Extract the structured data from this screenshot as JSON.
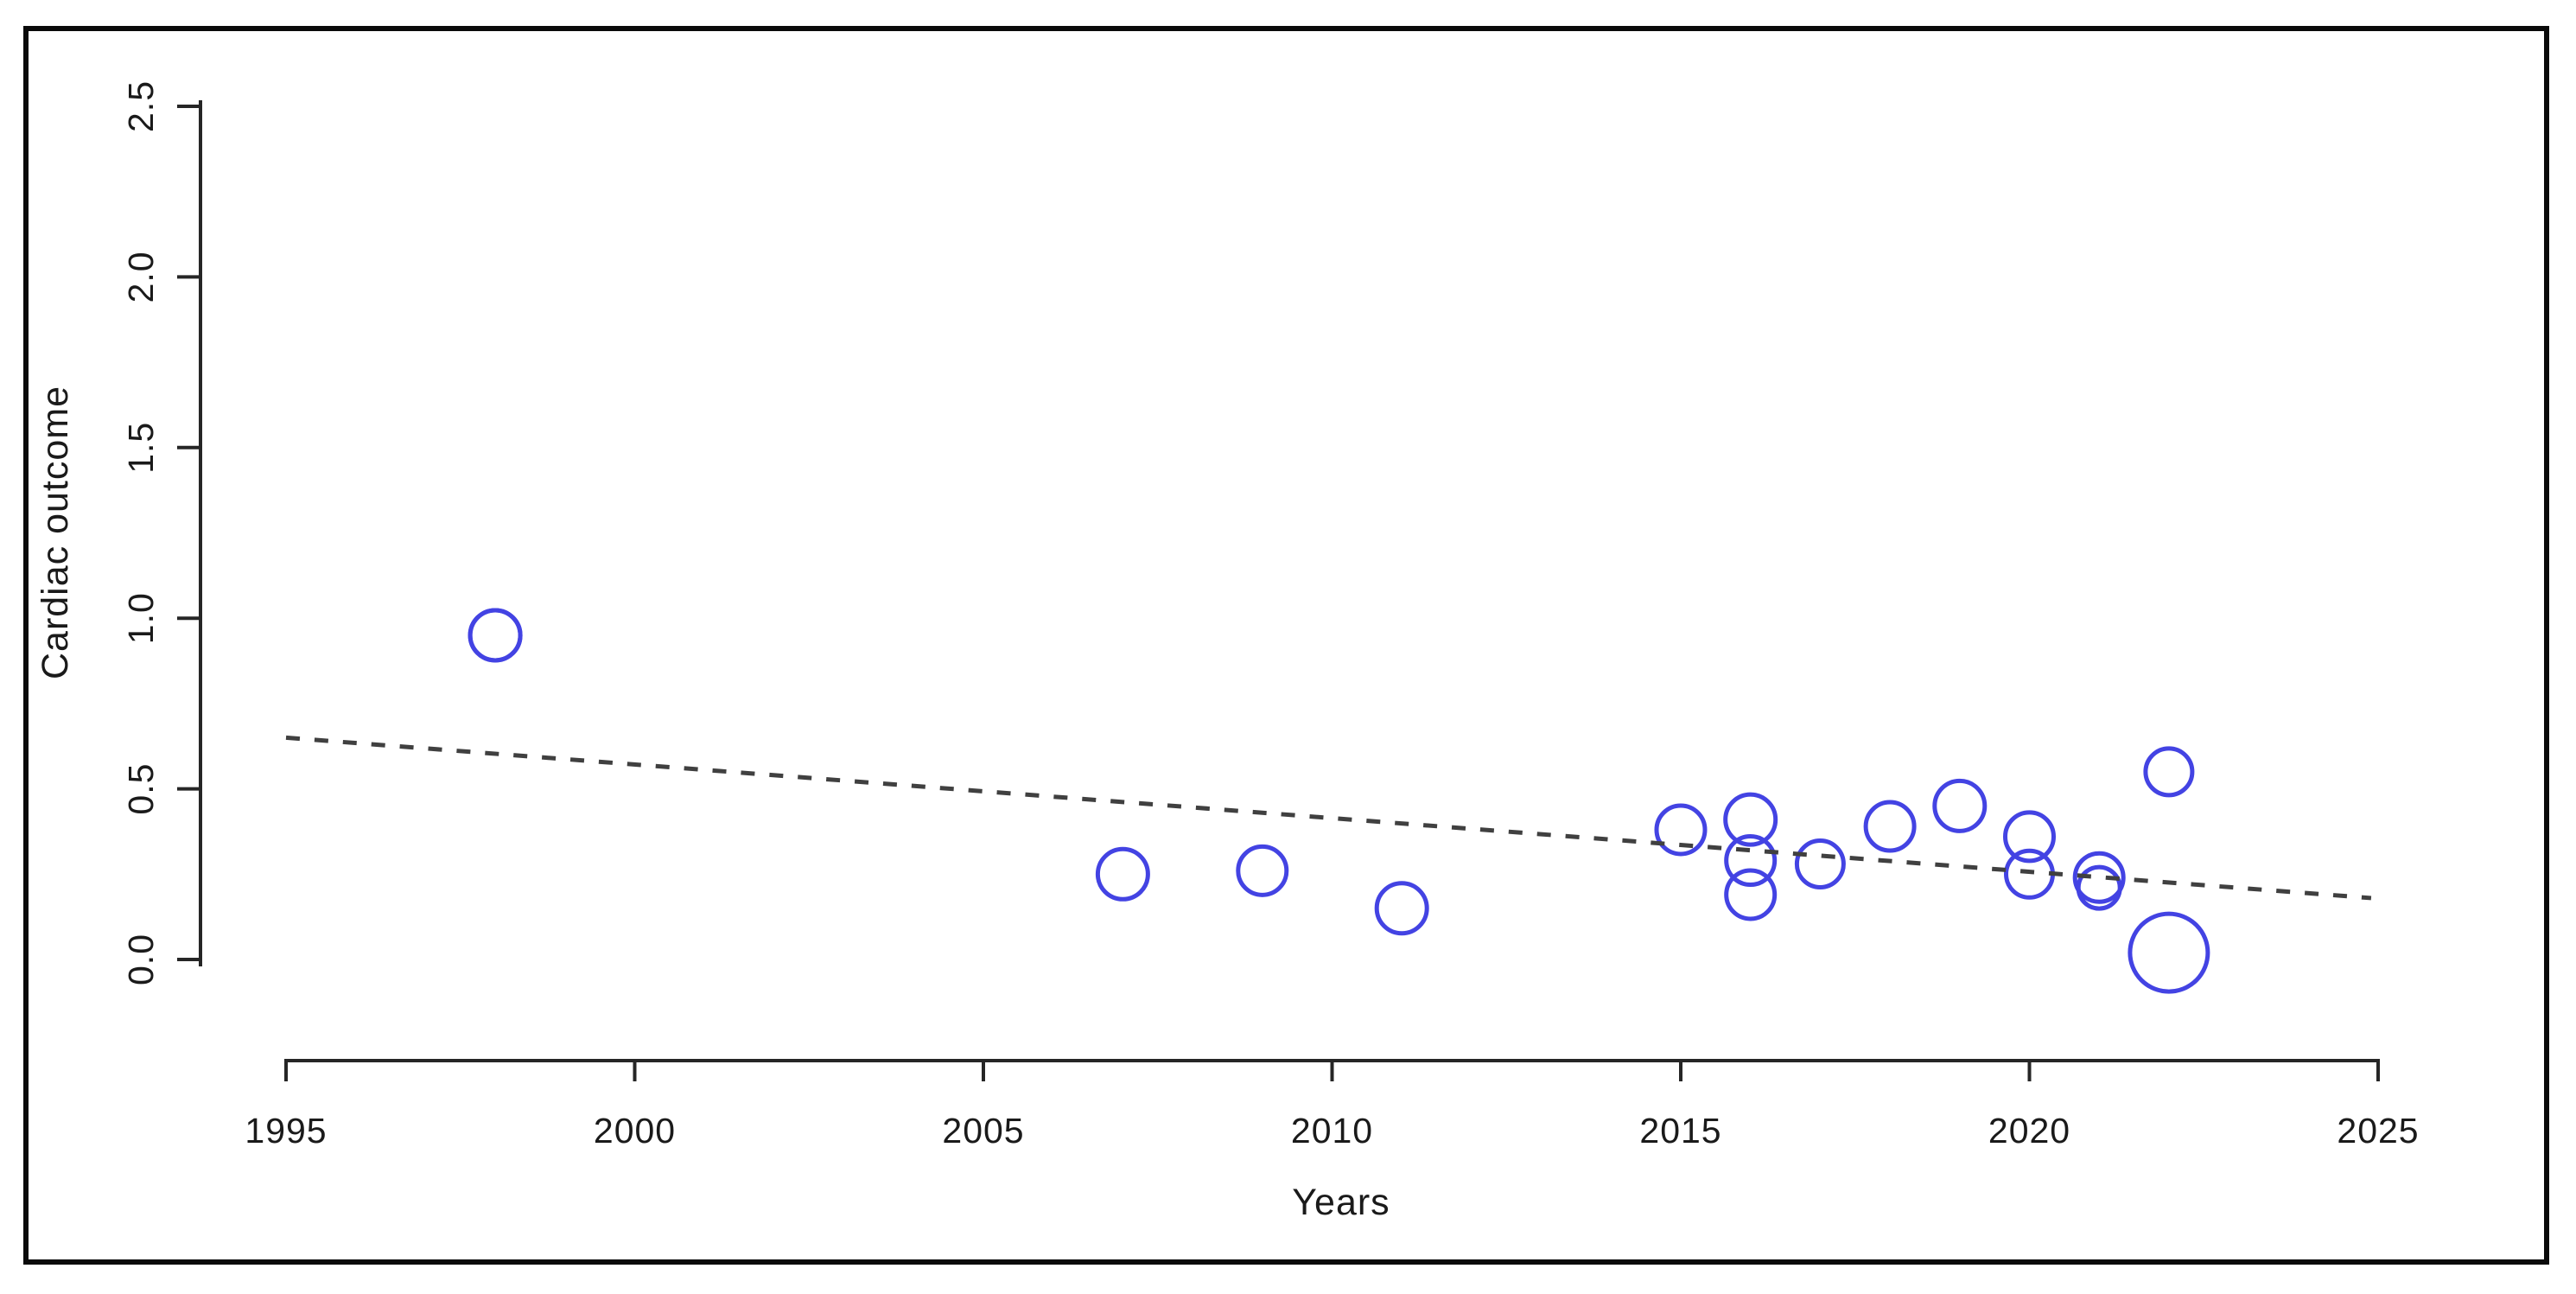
{
  "figure": {
    "background": "#ffffff",
    "border_color": "#0a0a0a",
    "axis_color": "#262626",
    "text_color": "#1a1a1a"
  },
  "chart_data": {
    "type": "scatter",
    "subtype": "bubble",
    "title": "",
    "xlabel": "Years",
    "ylabel": "Cardiac outcome",
    "x_ticks": [
      "1995",
      "2000",
      "2005",
      "2010",
      "2015",
      "2020",
      "2025"
    ],
    "y_ticks": [
      "0.0",
      "0.5",
      "1.0",
      "1.5",
      "2.0",
      "2.5"
    ],
    "xlim": [
      1995,
      2025
    ],
    "ylim": [
      -0.3,
      2.55
    ],
    "grid": false,
    "legend": "none",
    "marker": {
      "shape": "open-circle",
      "color": "#4343e3",
      "stroke_width": 5
    },
    "points": [
      {
        "x": 1998,
        "y": 0.95,
        "r": 29
      },
      {
        "x": 2007,
        "y": 0.25,
        "r": 29
      },
      {
        "x": 2009,
        "y": 0.26,
        "r": 28
      },
      {
        "x": 2011,
        "y": 0.15,
        "r": 29
      },
      {
        "x": 2015,
        "y": 0.38,
        "r": 28
      },
      {
        "x": 2016,
        "y": 0.41,
        "r": 29
      },
      {
        "x": 2016,
        "y": 0.29,
        "r": 28
      },
      {
        "x": 2016,
        "y": 0.19,
        "r": 28
      },
      {
        "x": 2017,
        "y": 0.28,
        "r": 27
      },
      {
        "x": 2018,
        "y": 0.39,
        "r": 28
      },
      {
        "x": 2019,
        "y": 0.45,
        "r": 29
      },
      {
        "x": 2020,
        "y": 0.36,
        "r": 28
      },
      {
        "x": 2020,
        "y": 0.25,
        "r": 27
      },
      {
        "x": 2021,
        "y": 0.24,
        "r": 28
      },
      {
        "x": 2021,
        "y": 0.21,
        "r": 24
      },
      {
        "x": 2022,
        "y": 0.55,
        "r": 27
      },
      {
        "x": 2022,
        "y": 0.02,
        "r": 45
      },
      {
        "x": 1998,
        "y": 0.95,
        "r": 29
      }
    ],
    "trend_line": {
      "style": "dashed",
      "color": "#404040",
      "x1": 1995,
      "y1": 0.65,
      "x2": 2024.9,
      "y2": 0.18
    }
  }
}
